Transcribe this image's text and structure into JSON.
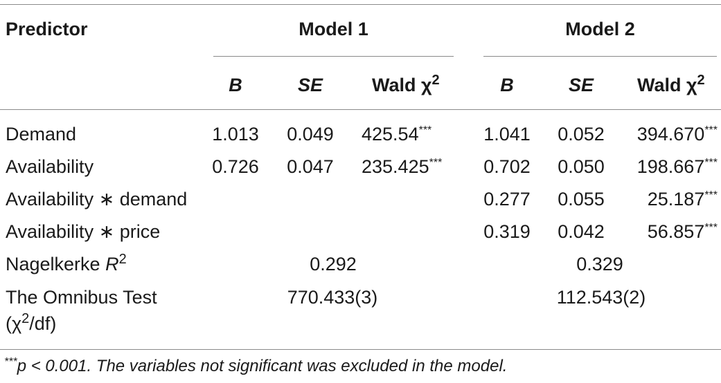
{
  "table": {
    "header": {
      "predictor": "Predictor",
      "model1": "Model 1",
      "model2": "Model 2",
      "b": "B",
      "se": "SE",
      "wald_prefix": "Wald χ",
      "wald_sup": "2"
    },
    "rows": [
      {
        "label": "Demand",
        "m1_b": "1.013",
        "m1_se": "0.049",
        "m1_wald": "425.54",
        "m1_stars": "***",
        "m2_b": "1.041",
        "m2_se": "0.052",
        "m2_wald": "394.670",
        "m2_stars": "***"
      },
      {
        "label": "Availability",
        "m1_b": "0.726",
        "m1_se": "0.047",
        "m1_wald": "235.425",
        "m1_stars": "***",
        "m2_b": "0.702",
        "m2_se": "0.050",
        "m2_wald": "198.667",
        "m2_stars": "***"
      },
      {
        "label": "Availability ∗ demand",
        "m2_b": "0.277",
        "m2_se": "0.055",
        "m2_wald": "25.187",
        "m2_stars": "***"
      },
      {
        "label": "Availability ∗ price",
        "m2_b": "0.319",
        "m2_se": "0.042",
        "m2_wald": "56.857",
        "m2_stars": "***"
      }
    ],
    "nagelkerke": {
      "label_prefix": "Nagelkerke ",
      "label_r": "R",
      "label_sup": "2",
      "m1": "0.292",
      "m2": "0.329"
    },
    "omnibus": {
      "label_line1": "The Omnibus Test",
      "label_line2_prefix": "(χ",
      "label_line2_sup": "2",
      "label_line2_suffix": "/df)",
      "m1": "770.433(3)",
      "m2": "112.543(2)"
    }
  },
  "footnote": {
    "stars": "***",
    "text": "p < 0.001. The variables not significant was excluded in the model."
  }
}
